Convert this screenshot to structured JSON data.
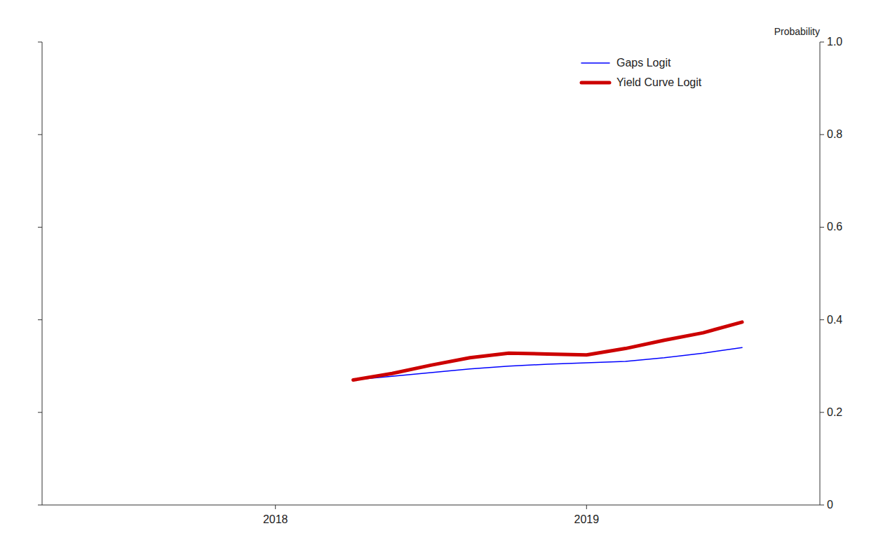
{
  "chart_data": {
    "type": "line",
    "y_label": "Probability",
    "x": [
      2018.25,
      2018.375,
      2018.5,
      2018.625,
      2018.75,
      2018.875,
      2019.0,
      2019.125,
      2019.25,
      2019.375,
      2019.5
    ],
    "series": [
      {
        "name": "Gaps Logit",
        "color": "#0000ff",
        "values": [
          0.27,
          0.278,
          0.286,
          0.294,
          0.3,
          0.304,
          0.307,
          0.31,
          0.318,
          0.328,
          0.34
        ]
      },
      {
        "name": "Yield Curve Logit",
        "color": "#cc0000",
        "values": [
          0.27,
          0.284,
          0.302,
          0.318,
          0.328,
          0.326,
          0.324,
          0.338,
          0.356,
          0.372,
          0.395
        ]
      }
    ],
    "xlim": [
      2017.25,
      2019.75
    ],
    "xticks": [
      2018,
      2019
    ],
    "ylim": [
      0,
      1.0
    ],
    "yticks": [
      0,
      0.2,
      0.4,
      0.6,
      0.8,
      {
        "value": 1.0,
        "label": "1.0"
      }
    ],
    "grid": false,
    "legend": "upper right"
  }
}
